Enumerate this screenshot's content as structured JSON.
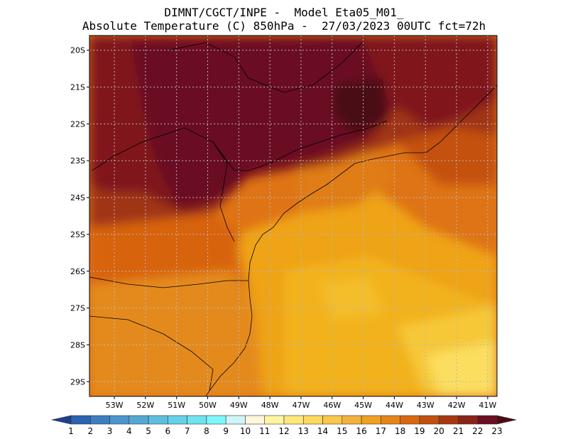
{
  "header": {
    "line1": "DIMNT/CGCT/INPE -  Model Eta05_M01_",
    "line2": "Absolute Temperature (C) 850hPa -  27/03/2023 00UTC fct=72h"
  },
  "map": {
    "lat_labels": [
      "20S",
      "21S",
      "22S",
      "23S",
      "24S",
      "25S",
      "26S",
      "27S",
      "28S",
      "29S"
    ],
    "lon_labels": [
      "53W",
      "52W",
      "51W",
      "50W",
      "49W",
      "48W",
      "47W",
      "46W",
      "45W",
      "44W",
      "43W",
      "42W",
      "41W"
    ],
    "lat_range": [
      -29.4,
      -19.6
    ],
    "lon_range": [
      -53.8,
      -40.7
    ],
    "gridlines": true
  },
  "colorbar": {
    "labels": [
      "1",
      "2",
      "3",
      "4",
      "5",
      "6",
      "7",
      "8",
      "9",
      "10",
      "11",
      "12",
      "13",
      "14",
      "15",
      "16",
      "17",
      "18",
      "19",
      "20",
      "21",
      "22",
      "23"
    ],
    "colors": [
      "#1f3f8f",
      "#2a63b0",
      "#3b7fc0",
      "#4a95cc",
      "#55a8d4",
      "#5ebede",
      "#63d2e8",
      "#6ee4f0",
      "#7ef7fc",
      "#cff5fb",
      "#fff6dc",
      "#fff5a0",
      "#ffe878",
      "#fdd85e",
      "#f9c74a",
      "#f3b23a",
      "#eea020",
      "#e68418",
      "#d8680f",
      "#c0500e",
      "#a63810",
      "#8a2416",
      "#6b0e22",
      "#4e0a14"
    ]
  },
  "legend_colors": {
    "ocean_warm": "#f0ad14",
    "land_hot": "#6b0822"
  }
}
